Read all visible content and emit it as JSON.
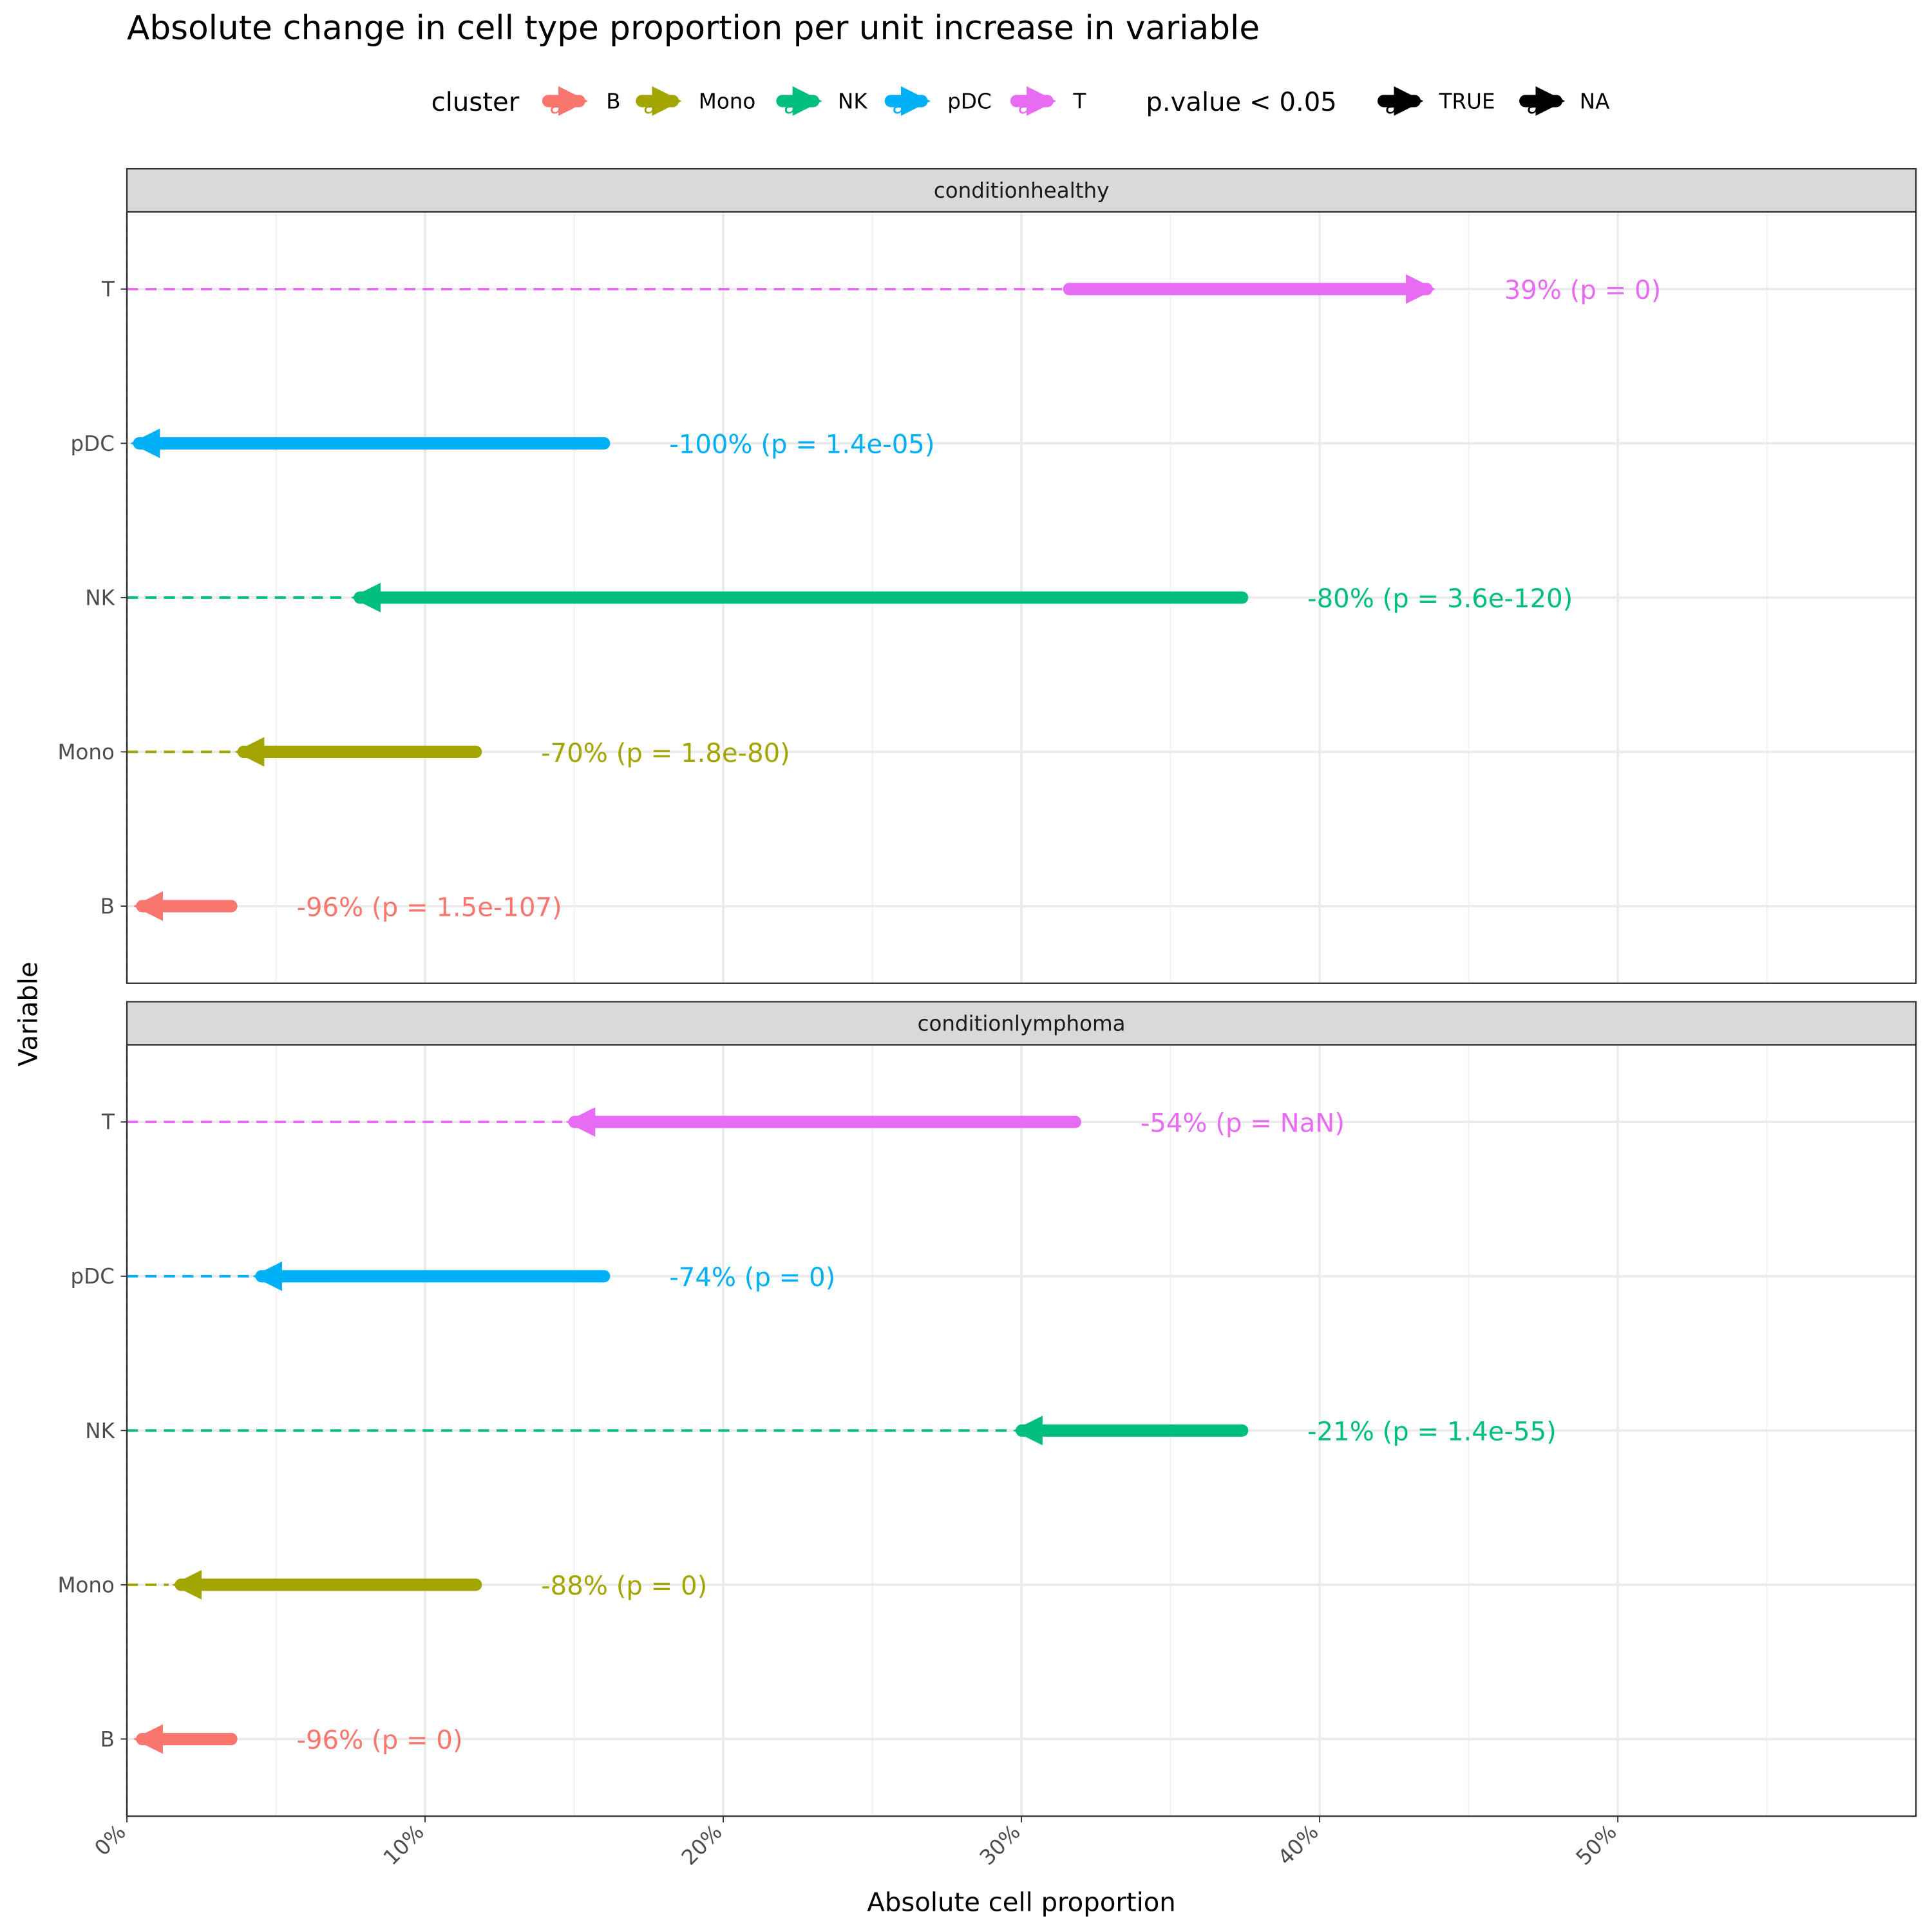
{
  "chart_data": {
    "type": "arrow",
    "title": "Absolute change in cell type proportion per unit increase in variable",
    "xlabel": "Absolute cell proportion",
    "ylabel": "Variable",
    "xlim": [
      0,
      0.6
    ],
    "x_ticks": [
      0,
      0.1,
      0.2,
      0.3,
      0.4,
      0.5
    ],
    "x_tick_labels": [
      "0%",
      "10%",
      "20%",
      "30%",
      "40%",
      "50%"
    ],
    "categories": [
      "B",
      "Mono",
      "NK",
      "pDC",
      "T"
    ],
    "colors": {
      "B": "#F8766D",
      "Mono": "#A3A500",
      "NK": "#00BF7D",
      "pDC": "#00B0F6",
      "T": "#E76BF3"
    },
    "legend": {
      "position": "top",
      "cluster_title": "cluster",
      "cluster_items": [
        "B",
        "Mono",
        "NK",
        "pDC",
        "T"
      ],
      "pvalue_title": "p.value < 0.05",
      "pvalue_items": [
        "TRUE",
        "NA"
      ],
      "key_glyph": "a"
    },
    "panels": [
      {
        "strip": "conditionhealthy",
        "rows": [
          {
            "cluster": "T",
            "from": 0.316,
            "to": 0.44,
            "label": "39% (p = 0)"
          },
          {
            "cluster": "pDC",
            "from": 0.16,
            "to": 0.0,
            "label": "-100% (p = 1.4e-05)"
          },
          {
            "cluster": "NK",
            "from": 0.374,
            "to": 0.074,
            "label": "-80% (p = 3.6e-120)"
          },
          {
            "cluster": "Mono",
            "from": 0.117,
            "to": 0.035,
            "label": "-70% (p = 1.8e-80)"
          },
          {
            "cluster": "B",
            "from": 0.035,
            "to": 0.001,
            "label": "-96% (p = 1.5e-107)"
          }
        ]
      },
      {
        "strip": "conditionlymphoma",
        "rows": [
          {
            "cluster": "T",
            "from": 0.318,
            "to": 0.146,
            "label": "-54% (p = NaN)"
          },
          {
            "cluster": "pDC",
            "from": 0.16,
            "to": 0.041,
            "label": "-74% (p = 0)"
          },
          {
            "cluster": "NK",
            "from": 0.374,
            "to": 0.296,
            "label": "-21% (p = 1.4e-55)"
          },
          {
            "cluster": "Mono",
            "from": 0.117,
            "to": 0.014,
            "label": "-88% (p = 0)"
          },
          {
            "cluster": "B",
            "from": 0.035,
            "to": 0.001,
            "label": "-96% (p = 0)"
          }
        ]
      }
    ]
  }
}
